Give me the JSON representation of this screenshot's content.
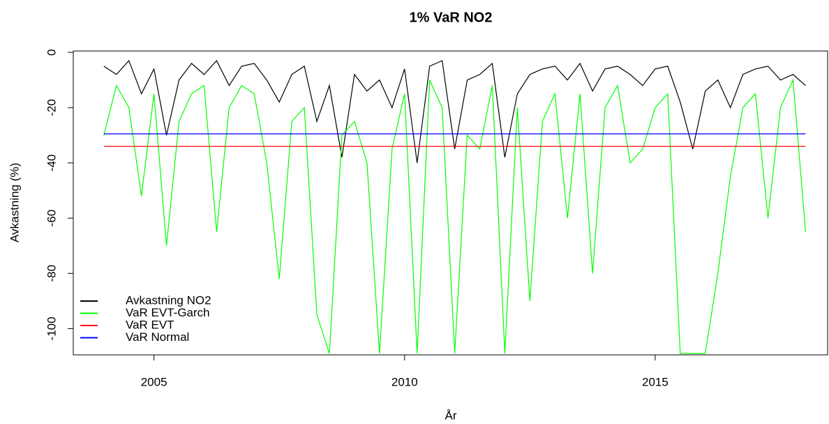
{
  "chart_data": {
    "type": "line",
    "title": "1% VaR NO2",
    "xlabel": "År",
    "ylabel": "Avkastning (%)",
    "x": [
      2004.0,
      2004.25,
      2004.5,
      2004.75,
      2005.0,
      2005.25,
      2005.5,
      2005.75,
      2006.0,
      2006.25,
      2006.5,
      2006.75,
      2007.0,
      2007.25,
      2007.5,
      2007.75,
      2008.0,
      2008.25,
      2008.5,
      2008.75,
      2009.0,
      2009.25,
      2009.5,
      2009.75,
      2010.0,
      2010.25,
      2010.5,
      2010.75,
      2011.0,
      2011.25,
      2011.5,
      2011.75,
      2012.0,
      2012.25,
      2012.5,
      2012.75,
      2013.0,
      2013.25,
      2013.5,
      2013.75,
      2014.0,
      2014.25,
      2014.5,
      2014.75,
      2015.0,
      2015.25,
      2015.5,
      2015.75,
      2016.0,
      2016.25,
      2016.5,
      2016.75,
      2017.0,
      2017.25,
      2017.5,
      2017.75,
      2018.0
    ],
    "series": [
      {
        "name": "Avkastning NO2",
        "color": "#000000",
        "values": [
          -5,
          -8,
          -3,
          -15,
          -6,
          -30,
          -10,
          -4,
          -8,
          -3,
          -12,
          -5,
          -4,
          -10,
          -18,
          -8,
          -5,
          -25,
          -12,
          -38,
          -8,
          -14,
          -10,
          -20,
          -6,
          -40,
          -5,
          -3,
          -35,
          -10,
          -8,
          -4,
          -38,
          -15,
          -8,
          -6,
          -5,
          -10,
          -4,
          -14,
          -6,
          -5,
          -8,
          -12,
          -6,
          -5,
          -18,
          -35,
          -14,
          -10,
          -20,
          -8,
          -6,
          -5,
          -10,
          -8,
          -12
        ]
      },
      {
        "name": "VaR EVT-Garch",
        "color": "#00ff00",
        "values": [
          -30,
          -12,
          -20,
          -52,
          -15,
          -70,
          -25,
          -15,
          -12,
          -65,
          -20,
          -12,
          -15,
          -40,
          -82,
          -25,
          -20,
          -95,
          -109,
          -30,
          -25,
          -40,
          -109,
          -35,
          -15,
          -109,
          -10,
          -20,
          -109,
          -30,
          -35,
          -12,
          -109,
          -20,
          -90,
          -25,
          -15,
          -60,
          -15,
          -80,
          -20,
          -12,
          -40,
          -35,
          -20,
          -15,
          -109,
          -109,
          -109,
          -80,
          -45,
          -20,
          -15,
          -60,
          -20,
          -10,
          -65
        ]
      },
      {
        "name": "VaR EVT",
        "color": "#ff0000",
        "level": -34
      },
      {
        "name": "VaR Normal",
        "color": "#0000ff",
        "level": -29.5
      }
    ],
    "xlim": [
      2003.39,
      2018.44
    ],
    "xticks": [
      2005,
      2010,
      2015
    ],
    "ylim": [
      -109.5,
      0.5
    ],
    "yticks": [
      0,
      -20,
      -40,
      -60,
      -80,
      -100
    ],
    "legend": "bottom-left"
  }
}
